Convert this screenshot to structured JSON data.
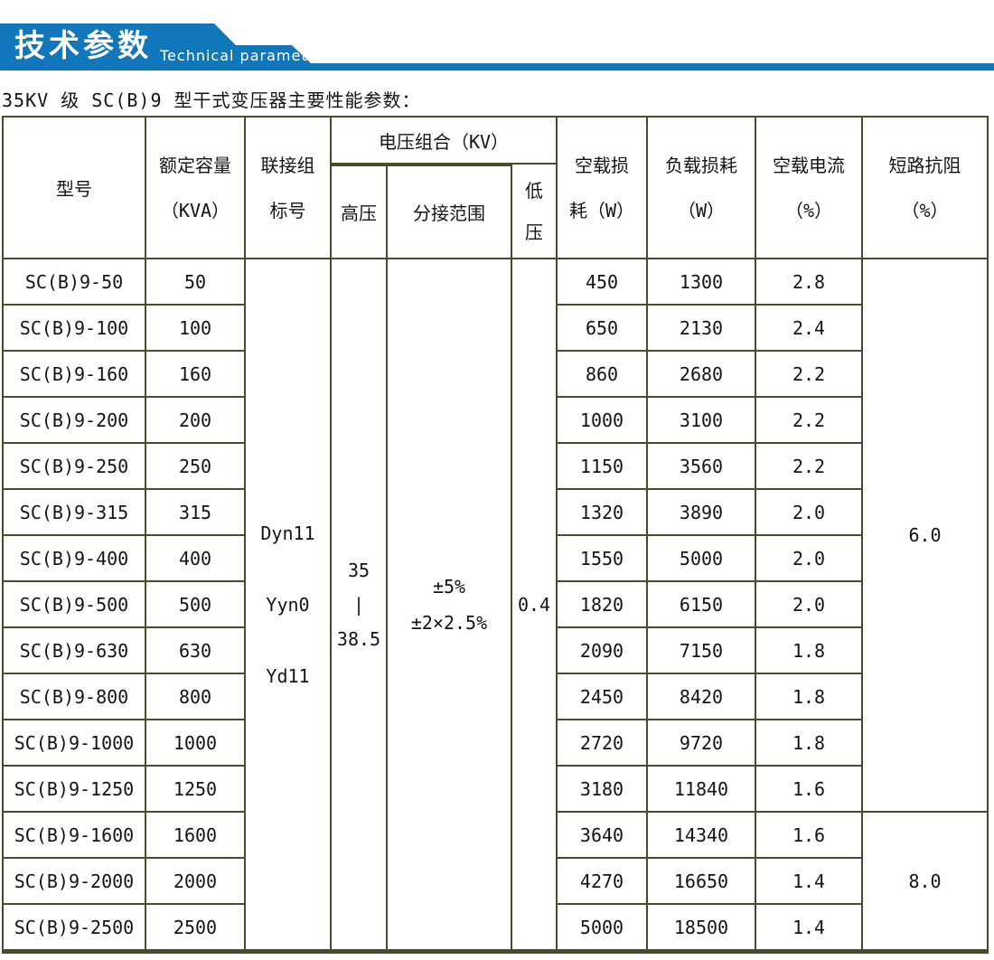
{
  "banner": {
    "title": "技术参数",
    "subtitle": "Technical parameter",
    "color": "#1177bc"
  },
  "page_title": "35KV 级 SC(B)9 型干式变压器主要性能参数：",
  "table": {
    "border_color": "#4a4a2e",
    "header": {
      "model": "型号",
      "capacity": [
        "额定容量",
        "（KVA）"
      ],
      "connection": [
        "联接组",
        "标号"
      ],
      "voltage_combo": "电压组合（KV）",
      "hv": "高压",
      "tap": "分接范围",
      "lv": [
        "低",
        "压"
      ],
      "no_load_loss": [
        "空载损",
        "耗（W）"
      ],
      "load_loss": [
        "负载损耗",
        "（W）"
      ],
      "no_load_current": [
        "空载电流",
        "（%）"
      ],
      "impedance": [
        "短路抗阻",
        "（%）"
      ]
    },
    "merged": {
      "connection": [
        "Dyn11",
        "Yyn0",
        "Yd11"
      ],
      "hv": [
        "35",
        "|",
        "38.5"
      ],
      "tap": [
        "±5%",
        "±2×2.5%"
      ],
      "lv": "0.4",
      "impedance_spans": [
        {
          "value": "6.0",
          "row_span": 12
        },
        {
          "value": "8.0",
          "row_span": 3
        }
      ]
    },
    "rows": [
      {
        "model": "SC(B)9-50",
        "capacity": "50",
        "no_load_loss": "450",
        "load_loss": "1300",
        "no_load_current": "2.8"
      },
      {
        "model": "SC(B)9-100",
        "capacity": "100",
        "no_load_loss": "650",
        "load_loss": "2130",
        "no_load_current": "2.4"
      },
      {
        "model": "SC(B)9-160",
        "capacity": "160",
        "no_load_loss": "860",
        "load_loss": "2680",
        "no_load_current": "2.2"
      },
      {
        "model": "SC(B)9-200",
        "capacity": "200",
        "no_load_loss": "1000",
        "load_loss": "3100",
        "no_load_current": "2.2"
      },
      {
        "model": "SC(B)9-250",
        "capacity": "250",
        "no_load_loss": "1150",
        "load_loss": "3560",
        "no_load_current": "2.2"
      },
      {
        "model": "SC(B)9-315",
        "capacity": "315",
        "no_load_loss": "1320",
        "load_loss": "3890",
        "no_load_current": "2.0"
      },
      {
        "model": "SC(B)9-400",
        "capacity": "400",
        "no_load_loss": "1550",
        "load_loss": "5000",
        "no_load_current": "2.0"
      },
      {
        "model": "SC(B)9-500",
        "capacity": "500",
        "no_load_loss": "1820",
        "load_loss": "6150",
        "no_load_current": "2.0"
      },
      {
        "model": "SC(B)9-630",
        "capacity": "630",
        "no_load_loss": "2090",
        "load_loss": "7150",
        "no_load_current": "1.8"
      },
      {
        "model": "SC(B)9-800",
        "capacity": "800",
        "no_load_loss": "2450",
        "load_loss": "8420",
        "no_load_current": "1.8"
      },
      {
        "model": "SC(B)9-1000",
        "capacity": "1000",
        "no_load_loss": "2720",
        "load_loss": "9720",
        "no_load_current": "1.8"
      },
      {
        "model": "SC(B)9-1250",
        "capacity": "1250",
        "no_load_loss": "3180",
        "load_loss": "11840",
        "no_load_current": "1.6"
      },
      {
        "model": "SC(B)9-1600",
        "capacity": "1600",
        "no_load_loss": "3640",
        "load_loss": "14340",
        "no_load_current": "1.6"
      },
      {
        "model": "SC(B)9-2000",
        "capacity": "2000",
        "no_load_loss": "4270",
        "load_loss": "16650",
        "no_load_current": "1.4"
      },
      {
        "model": "SC(B)9-2500",
        "capacity": "2500",
        "no_load_loss": "5000",
        "load_loss": "18500",
        "no_load_current": "1.4"
      }
    ]
  }
}
